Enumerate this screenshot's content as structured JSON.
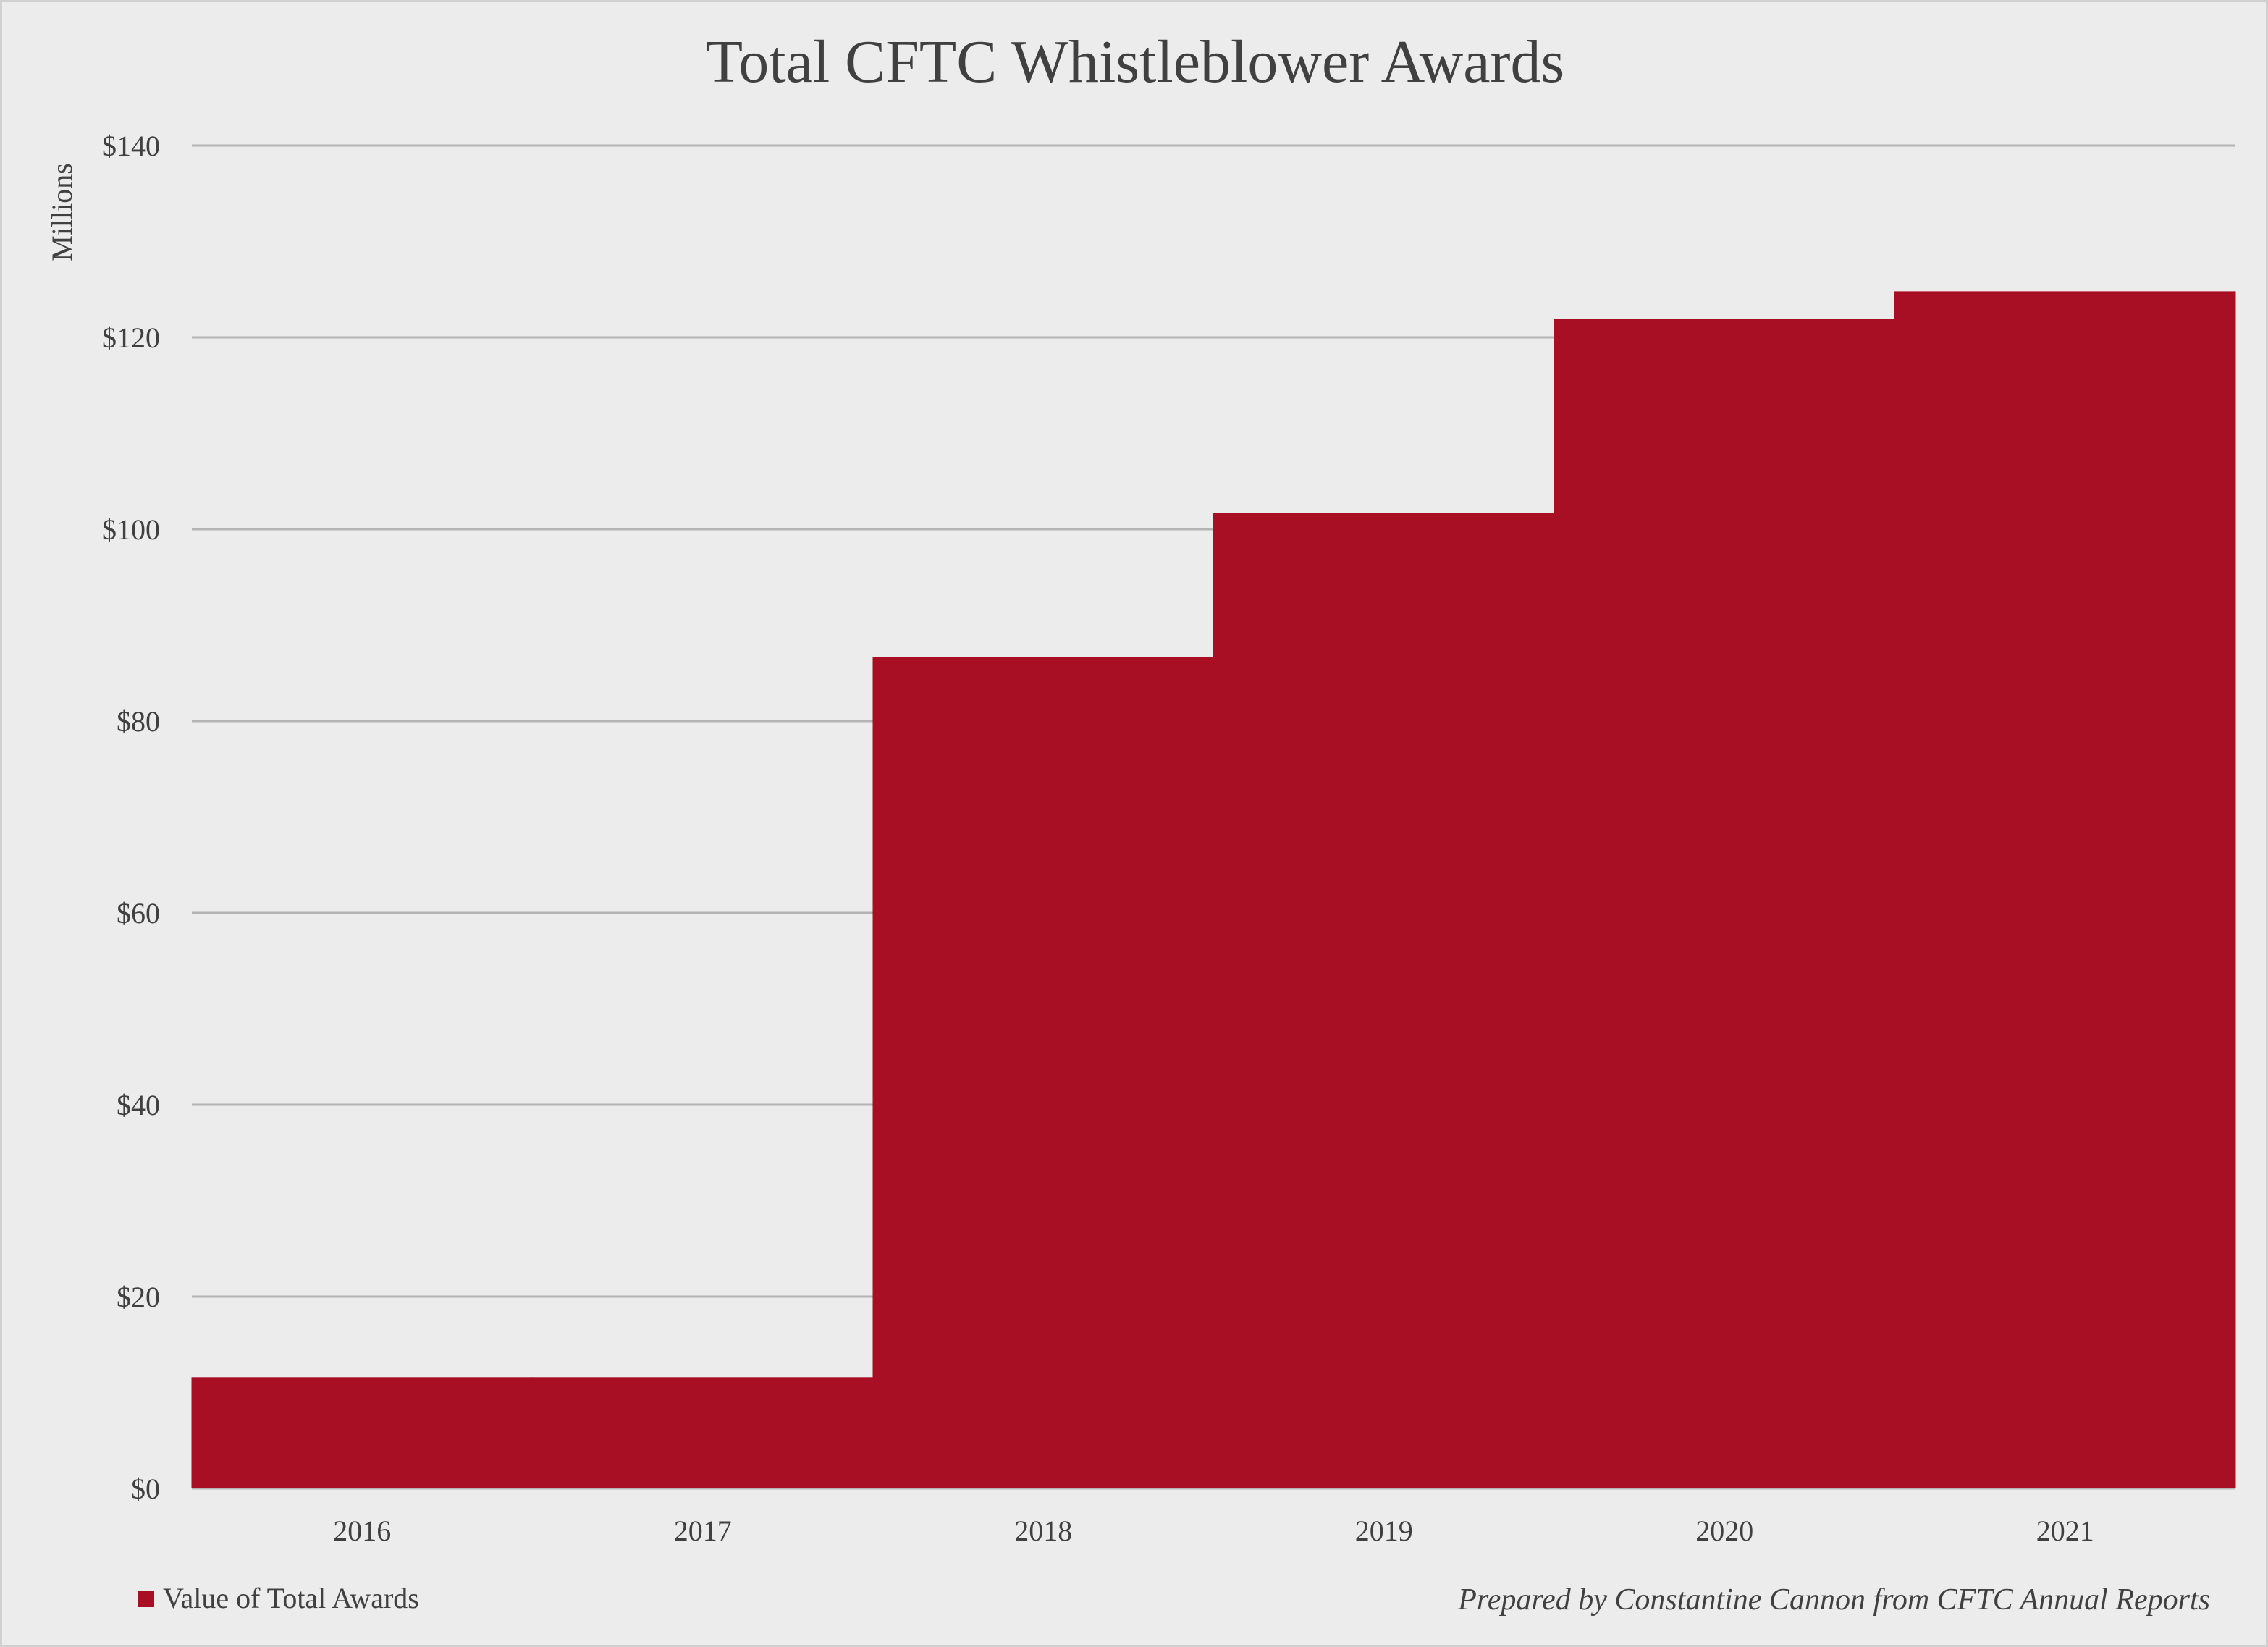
{
  "chart_data": {
    "type": "area",
    "title": "Total CFTC Whistleblower Awards",
    "ylabel": "Millions",
    "xlabel": "",
    "categories": [
      "2016",
      "2017",
      "2018",
      "2019",
      "2020",
      "2021"
    ],
    "series": [
      {
        "name": "Value of Total Awards",
        "values": [
          11.6,
          11.6,
          86.7,
          101.7,
          121.9,
          124.8
        ],
        "color": "#a90f24"
      }
    ],
    "ylim": [
      0,
      140
    ],
    "yticks": [
      0,
      20,
      40,
      60,
      80,
      100,
      120,
      140
    ],
    "ytick_labels": [
      "$0",
      "$20",
      "$40",
      "$60",
      "$80",
      "$100",
      "$120",
      "$140"
    ],
    "grid": true,
    "legend_position": "bottom-left",
    "step": true
  },
  "footer": {
    "credit": "Prepared by Constantine Cannon from CFTC Annual Reports"
  },
  "colors": {
    "background": "#ececec",
    "text": "#404040",
    "gridline": "#b4b4b4",
    "series": "#a90f24"
  }
}
